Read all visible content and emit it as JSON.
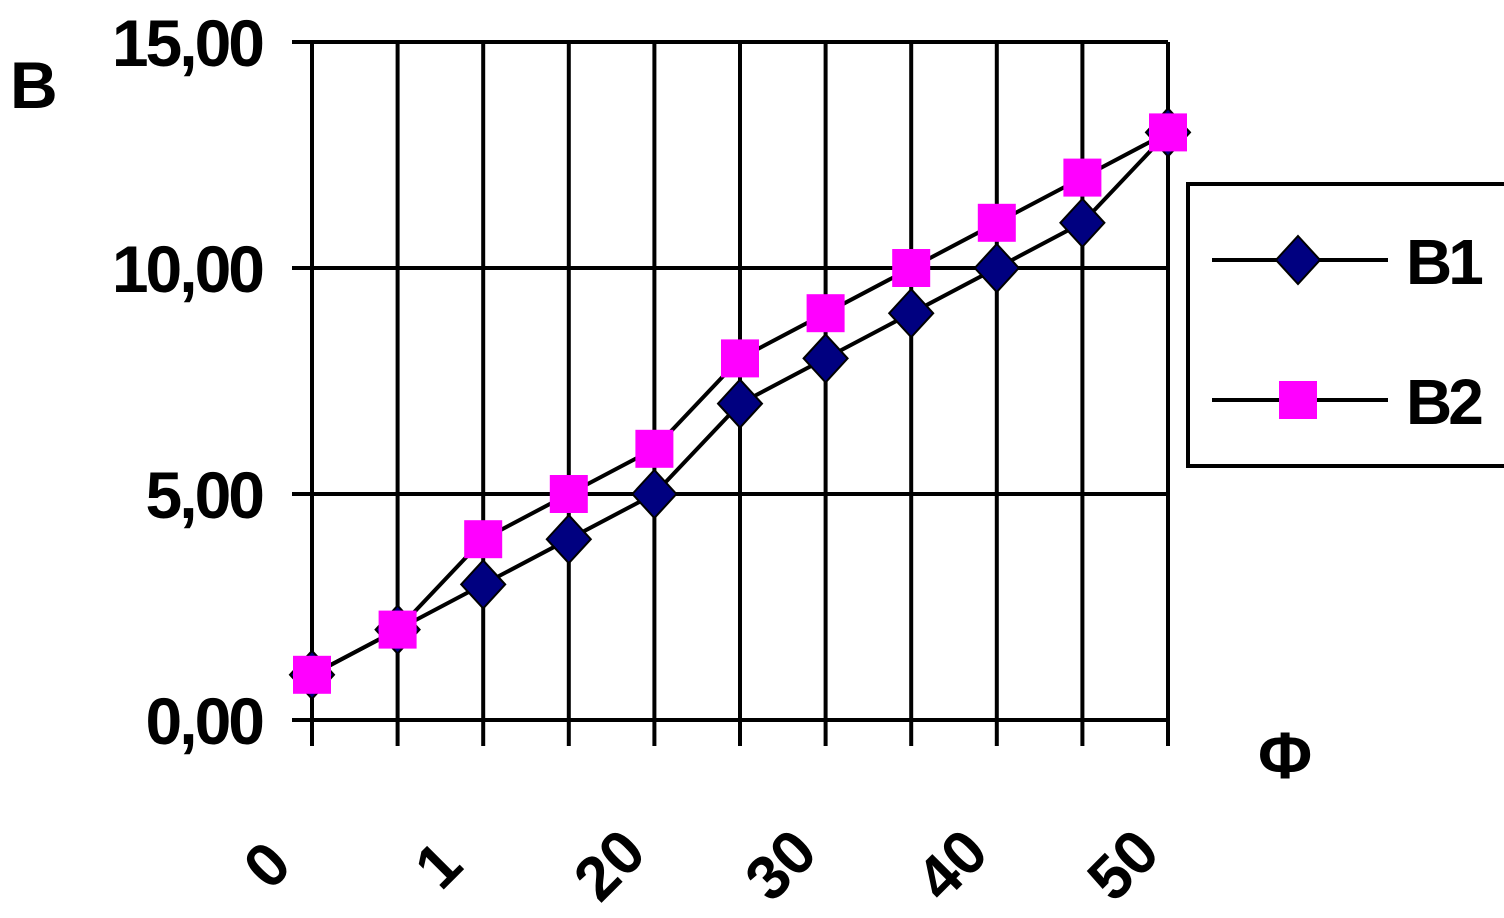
{
  "chart_data": {
    "type": "line",
    "ylabel": "B",
    "xlabel": "Φ",
    "categories": [
      "0",
      "",
      "1",
      "",
      "20",
      "",
      "30",
      "",
      "40",
      "",
      "50"
    ],
    "ylim": [
      0,
      15
    ],
    "yticks": [
      "0,00",
      "5,00",
      "10,00",
      "15,00"
    ],
    "ytick_values": [
      0,
      5,
      10,
      15
    ],
    "grid": true,
    "legend_position": "right",
    "series": [
      {
        "name": "B1",
        "marker": "diamond",
        "color": "#000080",
        "values": [
          1,
          2,
          3,
          4,
          5,
          7,
          8,
          9,
          10,
          11,
          13
        ]
      },
      {
        "name": "B2",
        "marker": "square",
        "color": "#FF00FF",
        "values": [
          1,
          2,
          4,
          5,
          6,
          8,
          9,
          10,
          11,
          12,
          13
        ]
      }
    ]
  }
}
